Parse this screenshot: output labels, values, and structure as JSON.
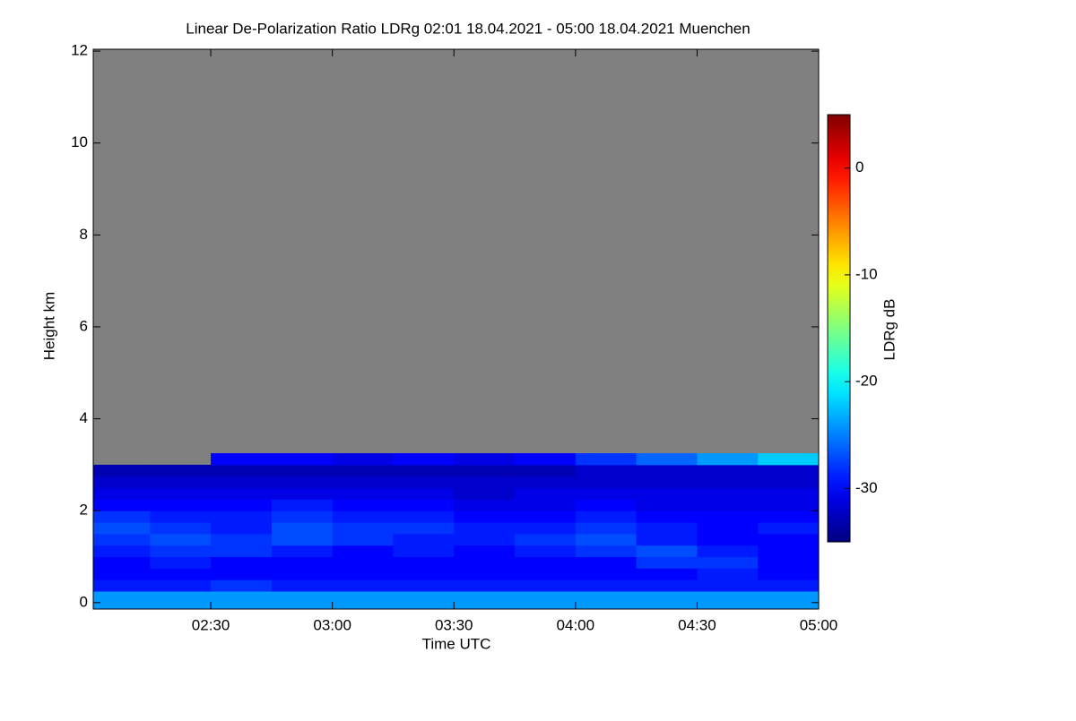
{
  "chart_data": {
    "type": "heatmap",
    "title": "Linear De-Polarization Ratio LDRg   02:01 18.04.2021 - 05:00 18.04.2021 Muenchen",
    "xlabel": "Time UTC",
    "ylabel": "Height km",
    "colorbar_label": "LDRg dB",
    "xlim": [
      121,
      300
    ],
    "xticks": [
      {
        "value": 150,
        "label": "02:30"
      },
      {
        "value": 180,
        "label": "03:00"
      },
      {
        "value": 210,
        "label": "03:30"
      },
      {
        "value": 240,
        "label": "04:00"
      },
      {
        "value": 270,
        "label": "04:30"
      },
      {
        "value": 300,
        "label": "05:00"
      }
    ],
    "ylim": [
      -0.14,
      12.04
    ],
    "yticks": [
      0,
      2,
      4,
      6,
      8,
      10,
      12
    ],
    "zlim": [
      -35,
      5
    ],
    "zticks": [
      0,
      -10,
      -20,
      -30
    ],
    "colormap": "jet",
    "missing_color": "#808080",
    "x_bins": [
      121,
      135,
      150,
      165,
      180,
      195,
      210,
      225,
      240,
      255,
      270,
      285,
      300
    ],
    "y_bins": [
      -0.14,
      0.25,
      0.5,
      0.75,
      1.0,
      1.25,
      1.5,
      1.75,
      2.0,
      2.25,
      2.5,
      2.75,
      3.0,
      3.25
    ],
    "values": [
      [
        -24,
        -24,
        -24,
        -24,
        -24,
        -24,
        -24,
        -24,
        -24,
        -24,
        -24,
        -24
      ],
      [
        -29,
        -29,
        -28,
        -29,
        -29,
        -29,
        -29,
        -29,
        -29,
        -29,
        -29,
        -29
      ],
      [
        -30,
        -30,
        -30,
        -30,
        -30,
        -30,
        -30,
        -30,
        -30,
        -30,
        -29,
        -30
      ],
      [
        -30,
        -29,
        -30,
        -30,
        -30,
        -30,
        -30,
        -30,
        -30,
        -28,
        -28,
        -30
      ],
      [
        -29,
        -28,
        -28,
        -29,
        -30,
        -29,
        -30,
        -29,
        -28,
        -27,
        -29,
        -30
      ],
      [
        -28,
        -27,
        -28,
        -27,
        -28,
        -29,
        -29,
        -28,
        -27,
        -29,
        -30,
        -30
      ],
      [
        -27,
        -28,
        -29,
        -27,
        -28,
        -28,
        -29,
        -29,
        -28,
        -29,
        -30,
        -29
      ],
      [
        -28,
        -29,
        -29,
        -28,
        -29,
        -29,
        -30,
        -30,
        -29,
        -30,
        -30,
        -30
      ],
      [
        -30,
        -30,
        -30,
        -29,
        -30,
        -30,
        -31,
        -31,
        -30,
        -31,
        -31,
        -31
      ],
      [
        -31,
        -31,
        -31,
        -31,
        -31,
        -31,
        -32,
        -31,
        -31,
        -31,
        -31,
        -31
      ],
      [
        -32,
        -32,
        -32,
        -32,
        -32,
        -32,
        -32,
        -32,
        -32,
        -32,
        -32,
        -32
      ],
      [
        -33,
        -33,
        -33,
        -33,
        -33,
        -33,
        -33,
        -33,
        -32,
        -32,
        -32,
        -32
      ],
      [
        null,
        null,
        -30,
        -30,
        -31,
        -30,
        -31,
        -30,
        -28,
        -26,
        -24,
        -22
      ]
    ]
  }
}
